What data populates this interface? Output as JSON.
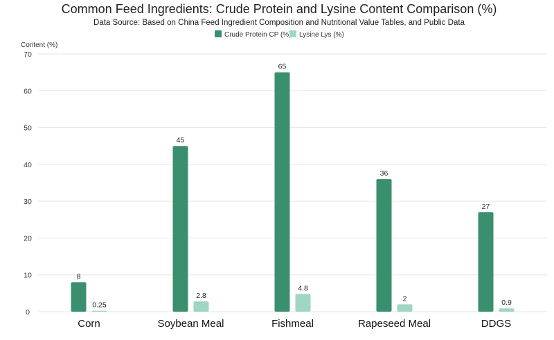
{
  "chart_data": {
    "type": "bar",
    "title": "Common Feed Ingredients: Crude Protein and Lysine Content Comparison (%)",
    "subtitle": "Data Source: Based on China Feed Ingredient Composition and Nutritional Value Tables, and Public Data",
    "ylabel": "Content (%)",
    "xlabel": "",
    "categories": [
      "Corn",
      "Soybean Meal",
      "Fishmeal",
      "Rapeseed Meal",
      "DDGS"
    ],
    "series": [
      {
        "name": "Crude Protein CP (%)",
        "values": [
          8,
          45,
          65,
          36,
          27
        ],
        "color": "#3a8f6e"
      },
      {
        "name": "Lysine Lys (%)",
        "values": [
          0.25,
          2.8,
          4.8,
          2,
          0.9
        ],
        "color": "#9fd6c2"
      }
    ],
    "ylim": [
      0,
      70
    ],
    "yticks": [
      0,
      10,
      20,
      30,
      40,
      50,
      60,
      70
    ],
    "grid": true,
    "legend_position": "top-center",
    "data_labels": true
  }
}
